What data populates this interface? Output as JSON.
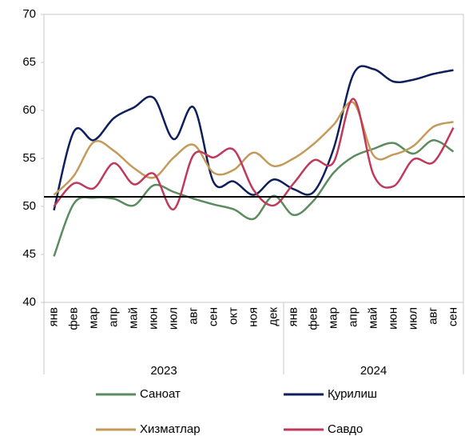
{
  "chart_data": {
    "type": "line",
    "groups": [
      {
        "label": "2023",
        "categories": [
          "янв",
          "фев",
          "мар",
          "апр",
          "май",
          "июн",
          "июл",
          "авг",
          "сен",
          "окт",
          "ноя",
          "дек"
        ]
      },
      {
        "label": "2024",
        "categories": [
          "янв",
          "фев",
          "мар",
          "апр",
          "май",
          "июн",
          "июл",
          "авг",
          "сен"
        ]
      }
    ],
    "series": [
      {
        "name": "Саноат",
        "color": "#5b8c5e",
        "values": [
          44.8,
          50.3,
          50.9,
          50.8,
          50.1,
          52.2,
          51.5,
          50.8,
          50.2,
          49.7,
          48.7,
          51.1,
          49.1,
          50.6,
          53.5,
          55.2,
          56.0,
          56.6,
          55.5,
          56.9,
          55.7
        ]
      },
      {
        "name": "Қурилиш",
        "color": "#0d1f5c",
        "values": [
          49.6,
          57.8,
          56.9,
          59.2,
          60.3,
          61.3,
          57.0,
          60.3,
          52.5,
          52.6,
          51.2,
          52.8,
          51.8,
          51.5,
          56.0,
          63.8,
          64.3,
          63.0,
          63.2,
          63.8,
          64.2
        ]
      },
      {
        "name": "Хизматлар",
        "color": "#c49a5a",
        "values": [
          51.2,
          53.2,
          56.7,
          55.8,
          54.0,
          53.0,
          55.1,
          56.4,
          53.5,
          53.8,
          55.6,
          54.2,
          55.0,
          56.5,
          58.5,
          60.8,
          55.3,
          55.4,
          56.3,
          58.3,
          58.8
        ]
      },
      {
        "name": "Савдо",
        "color": "#c0395a",
        "values": [
          50.0,
          52.4,
          51.9,
          54.5,
          52.3,
          53.4,
          49.7,
          55.4,
          55.1,
          55.9,
          51.7,
          50.1,
          52.4,
          54.8,
          54.6,
          61.2,
          53.3,
          52.1,
          54.9,
          54.6,
          58.2
        ]
      }
    ],
    "reference_line": 51,
    "ylim": [
      40,
      70
    ],
    "yticks": [
      40,
      45,
      50,
      55,
      60,
      65,
      70
    ]
  }
}
